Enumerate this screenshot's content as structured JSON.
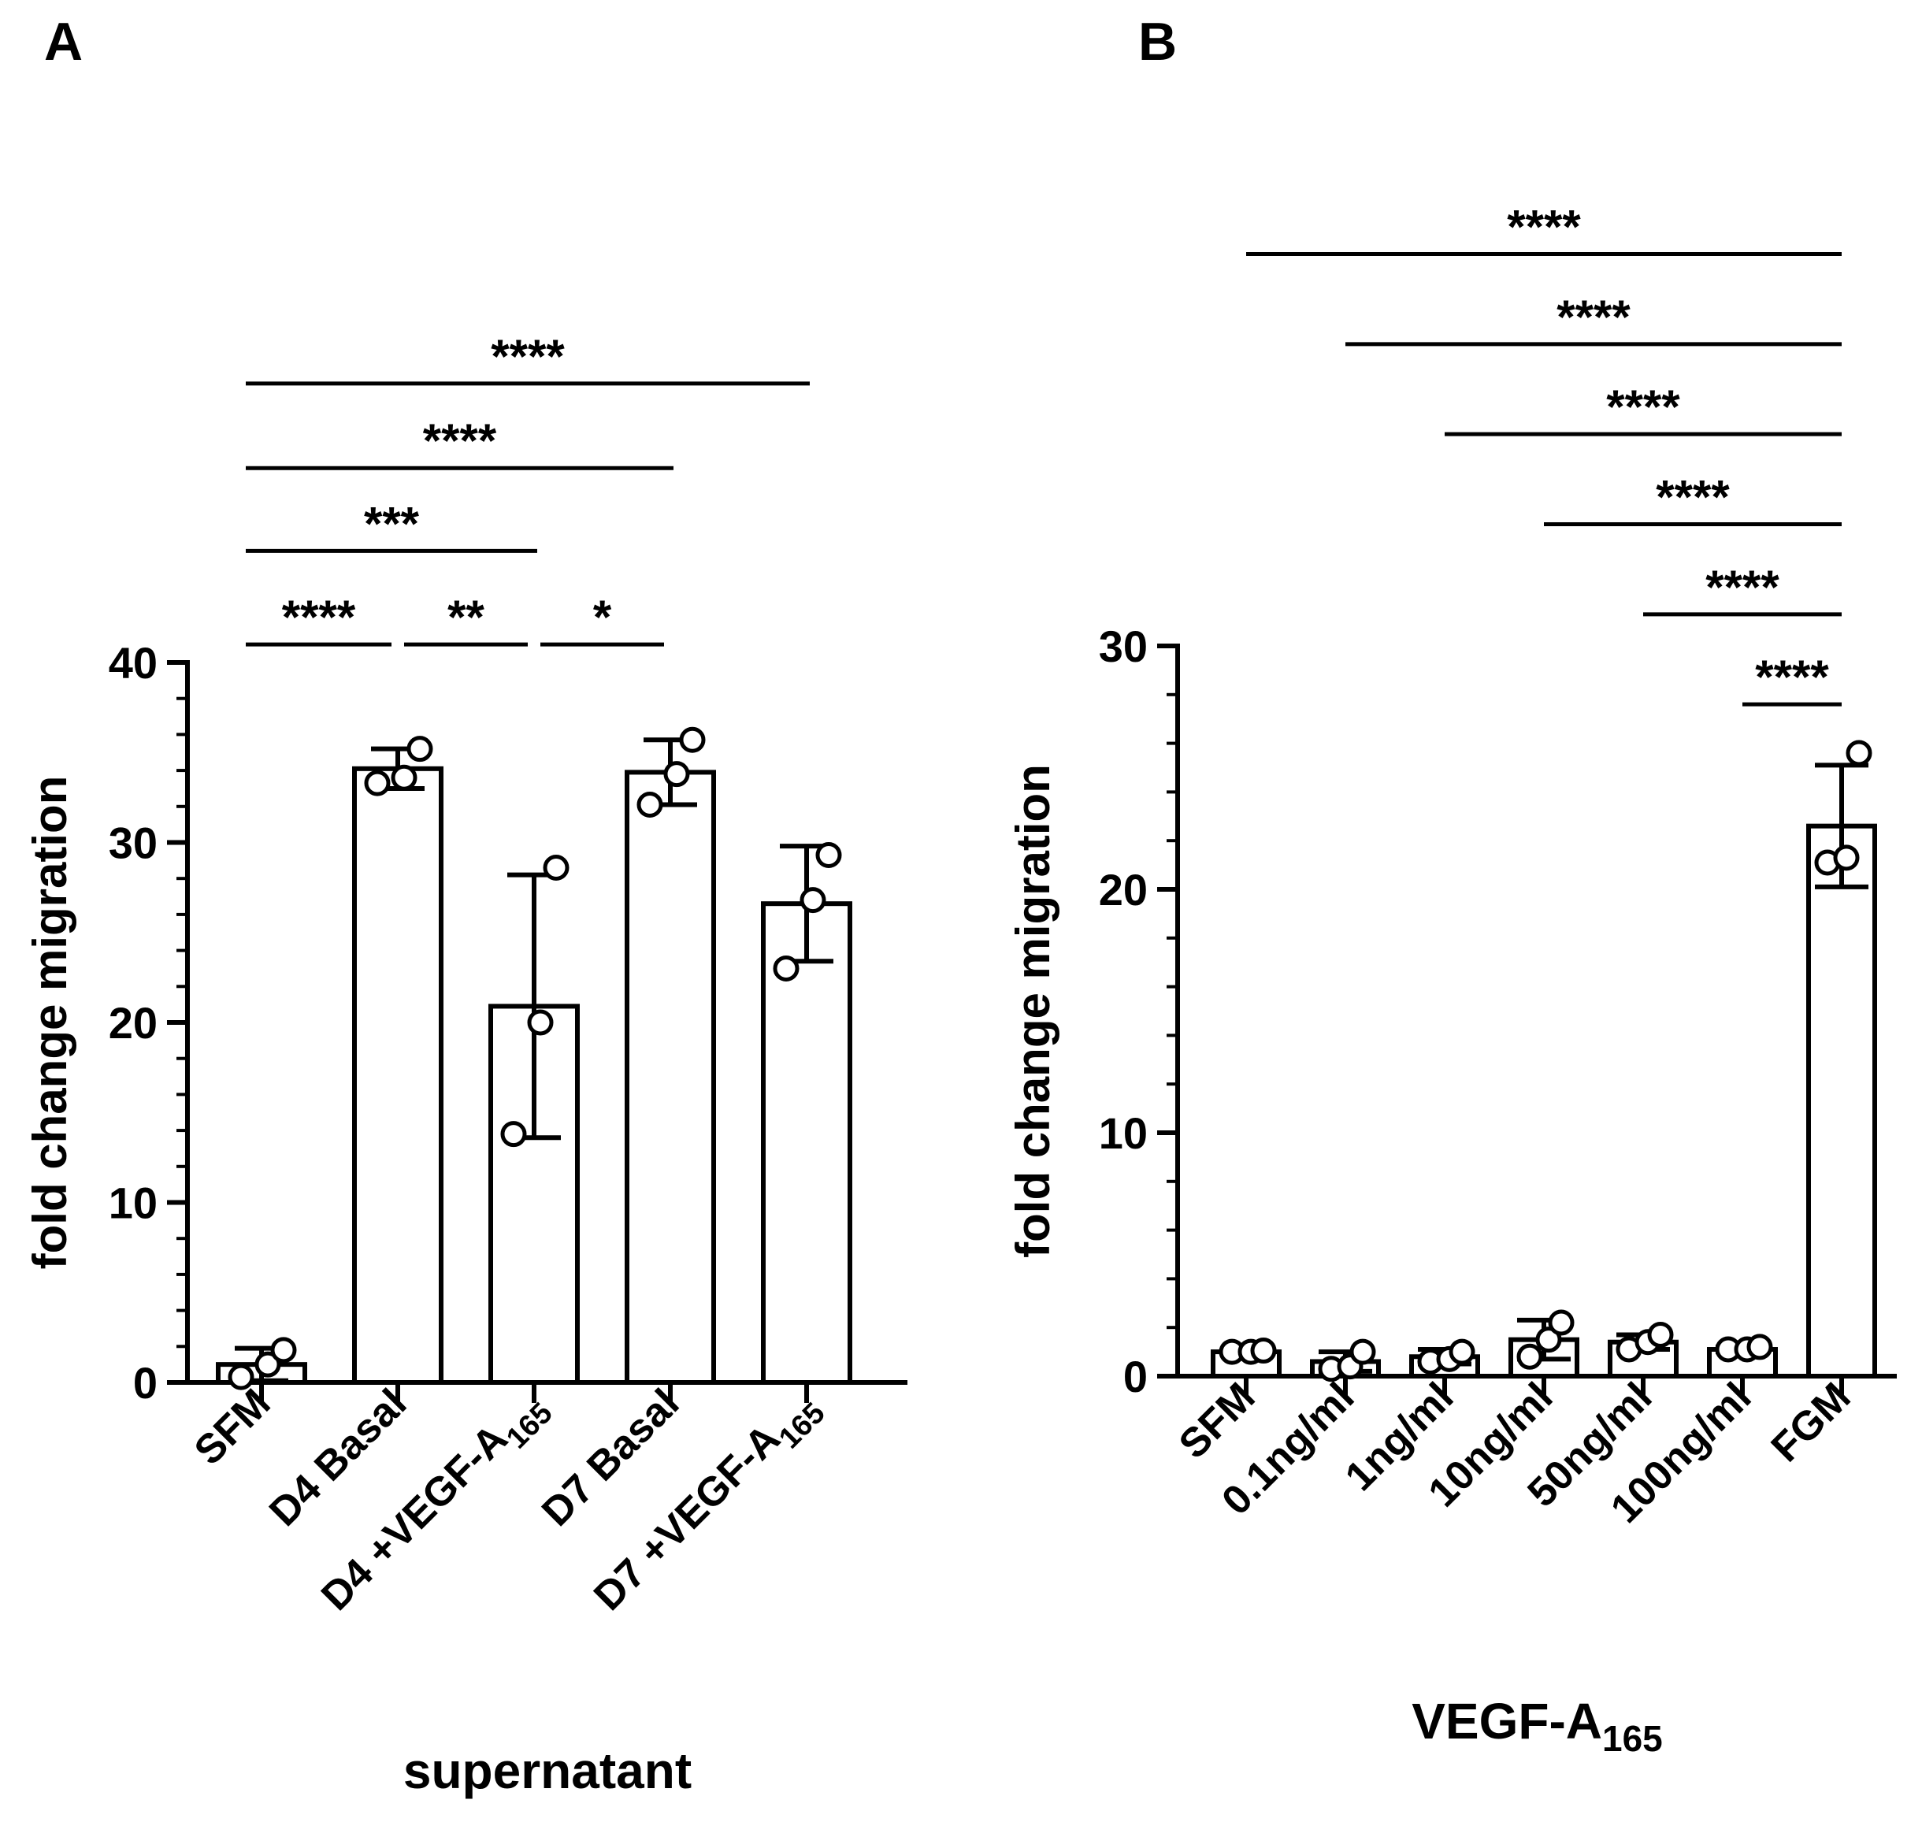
{
  "panels": {
    "A": {
      "letter": "A"
    },
    "B": {
      "letter": "B"
    }
  },
  "chart_data": [
    {
      "panel": "A",
      "type": "bar",
      "title": "",
      "ylabel": "fold change migration",
      "xlabel": "supernatant",
      "ylim": [
        0,
        40
      ],
      "yticks": [
        0,
        10,
        20,
        30,
        40
      ],
      "categories": [
        {
          "main": "SFM",
          "sub": "",
          "full": "SFM"
        },
        {
          "main": "D4 Basal",
          "sub": "",
          "full": "D4 Basal"
        },
        {
          "main": "D4 +VEGF-A",
          "sub": "165",
          "full": "D4 +VEGF-A165"
        },
        {
          "main": "D7 Basal",
          "sub": "",
          "full": "D7 Basal"
        },
        {
          "main": "D7 +VEGF-A",
          "sub": "165",
          "full": "D7 +VEGF-A165"
        }
      ],
      "values": [
        1.0,
        34.1,
        20.9,
        33.9,
        26.6
      ],
      "errors": [
        0.9,
        1.1,
        7.3,
        1.8,
        3.2
      ],
      "points": [
        [
          0.3,
          1.0,
          1.8
        ],
        [
          33.3,
          33.6,
          35.2
        ],
        [
          13.8,
          20.0,
          28.6
        ],
        [
          32.1,
          33.8,
          35.7
        ],
        [
          23.0,
          26.8,
          29.3
        ]
      ],
      "significance": [
        {
          "from": 0,
          "to": 1,
          "label": "****",
          "y": 41
        },
        {
          "from": 1,
          "to": 2,
          "label": "**",
          "y": 41
        },
        {
          "from": 2,
          "to": 3,
          "label": "*",
          "y": 41
        },
        {
          "from": 0,
          "to": 2,
          "label": "***",
          "y": 46.2
        },
        {
          "from": 0,
          "to": 3,
          "label": "****",
          "y": 50.8
        },
        {
          "from": 0,
          "to": 4,
          "label": "****",
          "y": 55.5
        }
      ]
    },
    {
      "panel": "B",
      "type": "bar",
      "title": "",
      "ylabel": "fold change migration",
      "xlabel": "VEGF-A",
      "xlabel_sub": "165",
      "ylim": [
        0,
        30
      ],
      "yticks": [
        0,
        10,
        20,
        30
      ],
      "categories": [
        {
          "main": "SFM",
          "sub": "",
          "full": "SFM"
        },
        {
          "main": "0.1ng/ml",
          "sub": "",
          "full": "0.1ng/ml"
        },
        {
          "main": "1ng/ml",
          "sub": "",
          "full": "1ng/ml"
        },
        {
          "main": "10ng/ml",
          "sub": "",
          "full": "10ng/ml"
        },
        {
          "main": "50ng/ml",
          "sub": "",
          "full": "50ng/ml"
        },
        {
          "main": "100ng/ml",
          "sub": "",
          "full": "100ng/ml"
        },
        {
          "main": "FGM",
          "sub": "",
          "full": "FGM"
        }
      ],
      "values": [
        1.0,
        0.6,
        0.8,
        1.5,
        1.4,
        1.1,
        22.6
      ],
      "errors": [
        0.05,
        0.4,
        0.3,
        0.8,
        0.3,
        0.1,
        2.5
      ],
      "points": [
        [
          1.0,
          1.0,
          1.05
        ],
        [
          0.3,
          0.4,
          1.0
        ],
        [
          0.6,
          0.7,
          1.0
        ],
        [
          0.8,
          1.5,
          2.2
        ],
        [
          1.1,
          1.4,
          1.7
        ],
        [
          1.1,
          1.1,
          1.2
        ],
        [
          21.1,
          21.3,
          25.6
        ]
      ],
      "significance": [
        {
          "from": 5,
          "to": 6,
          "label": "****",
          "y": 27.6
        },
        {
          "from": 4,
          "to": 6,
          "label": "****",
          "y": 31.3
        },
        {
          "from": 3,
          "to": 6,
          "label": "****",
          "y": 35.0
        },
        {
          "from": 2,
          "to": 6,
          "label": "****",
          "y": 38.7
        },
        {
          "from": 1,
          "to": 6,
          "label": "****",
          "y": 42.4
        },
        {
          "from": 0,
          "to": 6,
          "label": "****",
          "y": 46.1
        }
      ]
    }
  ]
}
